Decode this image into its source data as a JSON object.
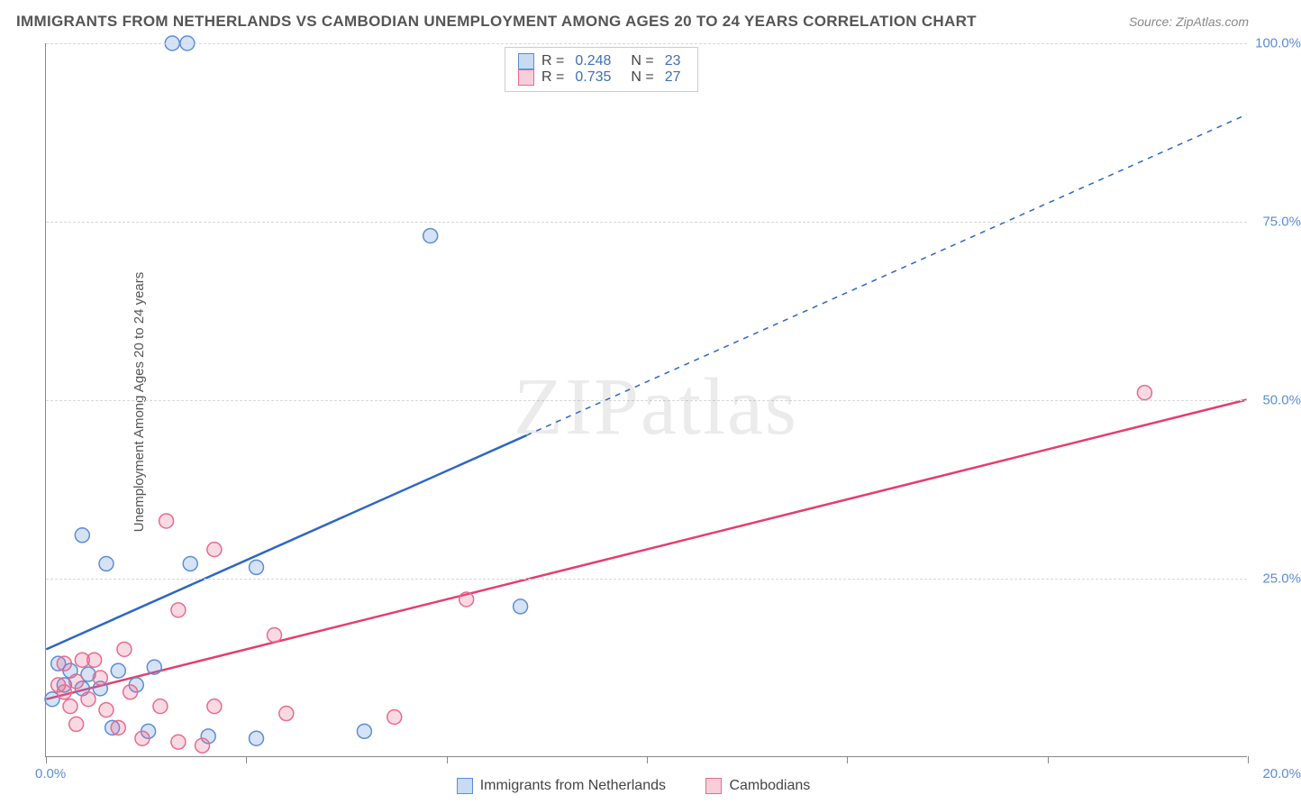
{
  "title": "IMMIGRANTS FROM NETHERLANDS VS CAMBODIAN UNEMPLOYMENT AMONG AGES 20 TO 24 YEARS CORRELATION CHART",
  "source_label": "Source:",
  "source_value": "ZipAtlas.com",
  "ylabel": "Unemployment Among Ages 20 to 24 years",
  "watermark": "ZIPatlas",
  "chart": {
    "type": "scatter",
    "xlim": [
      0,
      20
    ],
    "ylim": [
      0,
      100
    ],
    "x_tick_positions": [
      0,
      3.33,
      6.67,
      10,
      13.33,
      16.67,
      20
    ],
    "y_tick_positions": [
      25,
      50,
      75,
      100
    ],
    "x_tick_label_left": "0.0%",
    "x_tick_label_right": "20.0%",
    "y_tick_labels": [
      "25.0%",
      "50.0%",
      "75.0%",
      "100.0%"
    ],
    "grid_color": "#d8d8d8",
    "background_color": "#ffffff",
    "marker_radius": 8,
    "marker_stroke_width": 1.5,
    "line_width": 2.5,
    "series": [
      {
        "name": "Immigrants from Netherlands",
        "color_stroke": "#5b8dd6",
        "color_fill": "rgba(91,141,214,0.25)",
        "line_color": "#2d66c4",
        "R": "0.248",
        "N": "23",
        "trend": {
          "x1": 0,
          "y1": 15,
          "x2": 20,
          "y2": 90,
          "solid_until_x": 8
        },
        "points": [
          {
            "x": 2.1,
            "y": 100
          },
          {
            "x": 2.35,
            "y": 100
          },
          {
            "x": 6.4,
            "y": 73
          },
          {
            "x": 0.6,
            "y": 31
          },
          {
            "x": 1.0,
            "y": 27
          },
          {
            "x": 2.4,
            "y": 27
          },
          {
            "x": 3.5,
            "y": 26.5
          },
          {
            "x": 7.9,
            "y": 21
          },
          {
            "x": 0.2,
            "y": 13
          },
          {
            "x": 0.4,
            "y": 12
          },
          {
            "x": 0.7,
            "y": 11.5
          },
          {
            "x": 1.2,
            "y": 12
          },
          {
            "x": 1.8,
            "y": 12.5
          },
          {
            "x": 0.3,
            "y": 10
          },
          {
            "x": 0.6,
            "y": 9.5
          },
          {
            "x": 0.9,
            "y": 9.5
          },
          {
            "x": 1.5,
            "y": 10
          },
          {
            "x": 0.1,
            "y": 8
          },
          {
            "x": 1.1,
            "y": 4
          },
          {
            "x": 1.7,
            "y": 3.5
          },
          {
            "x": 2.7,
            "y": 2.8
          },
          {
            "x": 3.5,
            "y": 2.5
          },
          {
            "x": 5.3,
            "y": 3.5
          }
        ]
      },
      {
        "name": "Cambodians",
        "color_stroke": "#e76a8f",
        "color_fill": "rgba(231,106,143,0.25)",
        "line_color": "#e43e6f",
        "R": "0.735",
        "N": "27",
        "trend": {
          "x1": 0,
          "y1": 8,
          "x2": 20,
          "y2": 50,
          "solid_until_x": 20
        },
        "points": [
          {
            "x": 18.3,
            "y": 51
          },
          {
            "x": 2.0,
            "y": 33
          },
          {
            "x": 2.8,
            "y": 29
          },
          {
            "x": 7.0,
            "y": 22
          },
          {
            "x": 2.2,
            "y": 20.5
          },
          {
            "x": 3.8,
            "y": 17
          },
          {
            "x": 1.3,
            "y": 15
          },
          {
            "x": 0.3,
            "y": 13
          },
          {
            "x": 0.6,
            "y": 13.5
          },
          {
            "x": 0.8,
            "y": 13.5
          },
          {
            "x": 0.2,
            "y": 10
          },
          {
            "x": 0.5,
            "y": 10.5
          },
          {
            "x": 0.9,
            "y": 11
          },
          {
            "x": 0.3,
            "y": 9
          },
          {
            "x": 0.7,
            "y": 8
          },
          {
            "x": 1.4,
            "y": 9
          },
          {
            "x": 0.4,
            "y": 7
          },
          {
            "x": 1.0,
            "y": 6.5
          },
          {
            "x": 1.9,
            "y": 7
          },
          {
            "x": 2.8,
            "y": 7
          },
          {
            "x": 0.5,
            "y": 4.5
          },
          {
            "x": 1.2,
            "y": 4
          },
          {
            "x": 1.6,
            "y": 2.5
          },
          {
            "x": 2.2,
            "y": 2
          },
          {
            "x": 2.6,
            "y": 1.5
          },
          {
            "x": 4.0,
            "y": 6
          },
          {
            "x": 5.8,
            "y": 5.5
          }
        ]
      }
    ]
  },
  "legend_top": {
    "r_label": "R =",
    "n_label": "N ="
  },
  "legend_bottom": {
    "items": [
      "Immigrants from Netherlands",
      "Cambodians"
    ]
  }
}
